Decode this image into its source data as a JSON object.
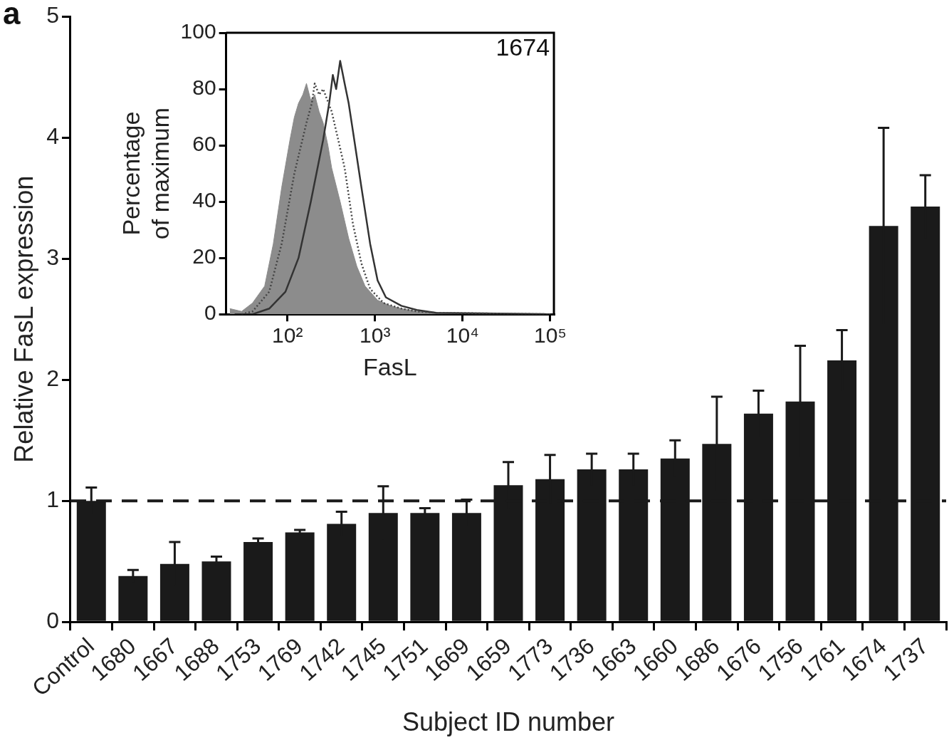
{
  "chart_data": [
    {
      "type": "bar",
      "xlabel": "Subject ID number",
      "ylabel": "Relative FasL expression",
      "annotations": [
        "a"
      ],
      "categories": [
        "Control",
        "1680",
        "1667",
        "1688",
        "1753",
        "1769",
        "1742",
        "1745",
        "1751",
        "1669",
        "1659",
        "1773",
        "1736",
        "1663",
        "1660",
        "1686",
        "1676",
        "1756",
        "1761",
        "1674",
        "1737"
      ],
      "values": [
        1.0,
        0.38,
        0.48,
        0.5,
        0.66,
        0.74,
        0.81,
        0.9,
        0.9,
        0.9,
        1.13,
        1.18,
        1.26,
        1.26,
        1.35,
        1.47,
        1.72,
        1.82,
        2.16,
        3.27,
        3.43
      ],
      "errors": [
        0.11,
        0.05,
        0.18,
        0.04,
        0.03,
        0.02,
        0.1,
        0.22,
        0.04,
        0.11,
        0.19,
        0.2,
        0.13,
        0.13,
        0.15,
        0.39,
        0.19,
        0.46,
        0.25,
        0.81,
        0.26
      ],
      "color": "#1a1a1a",
      "ylim": [
        0,
        5
      ],
      "yticks": [
        0,
        1,
        2,
        3,
        4,
        5
      ],
      "grid": false,
      "legend": false,
      "ref_lines": [
        {
          "axis": "y",
          "value": 1,
          "color": "#1a1a1a",
          "line_style": "dashed"
        }
      ]
    },
    {
      "type": "line",
      "xlabel": "FasL",
      "ylabel": "Percentage of maximum",
      "annotations": [
        "1674"
      ],
      "log": "x",
      "grid": false,
      "legend": false,
      "xlim": [
        20,
        110000
      ],
      "xticks": [
        {
          "value": 100,
          "label": "10²"
        },
        {
          "value": 1000,
          "label": "10³"
        },
        {
          "value": 10000,
          "label": "10⁴"
        },
        {
          "value": 100000,
          "label": "10⁵"
        }
      ],
      "ylim": [
        0,
        100
      ],
      "yticks": [
        0,
        20,
        40,
        60,
        80,
        100
      ],
      "series": [
        {
          "type": "area",
          "color": "#8c8c8c",
          "x": [
            22,
            30,
            40,
            55,
            69,
            86,
            107,
            120,
            134,
            150,
            165,
            185,
            205,
            230,
            256,
            290,
            320,
            400,
            500,
            620,
            770,
            1070,
            1500,
            2000,
            3000,
            5000,
            15000,
            45000,
            100000
          ],
          "values": [
            2,
            1,
            4,
            10,
            25,
            45,
            62,
            70,
            75,
            78,
            82,
            76,
            78,
            72,
            68,
            60,
            52,
            40,
            27,
            17,
            10,
            5,
            3,
            2,
            1,
            0.5,
            0,
            0,
            0
          ]
        },
        {
          "type": "line",
          "color": "#444444",
          "line_style": "dotted",
          "x": [
            30,
            40,
            62,
            86,
            120,
            165,
            190,
            205,
            230,
            256,
            320,
            380,
            450,
            560,
            700,
            880,
            1250,
            2000,
            3000,
            5000,
            100000
          ],
          "values": [
            0,
            1,
            8,
            25,
            50,
            68,
            75,
            82,
            78,
            80,
            72,
            62,
            52,
            32,
            18,
            9,
            4,
            2,
            1,
            0.5,
            0
          ]
        },
        {
          "type": "line",
          "color": "#333333",
          "line_style": "solid",
          "x": [
            25,
            40,
            62,
            95,
            134,
            185,
            256,
            300,
            330,
            360,
            400,
            450,
            500,
            560,
            700,
            880,
            1070,
            1330,
            2000,
            3000,
            5000,
            100000
          ],
          "values": [
            0,
            0,
            2,
            8,
            20,
            40,
            62,
            75,
            85,
            80,
            90,
            82,
            75,
            65,
            45,
            25,
            12,
            6,
            3,
            1.5,
            0.5,
            0
          ]
        }
      ]
    }
  ]
}
